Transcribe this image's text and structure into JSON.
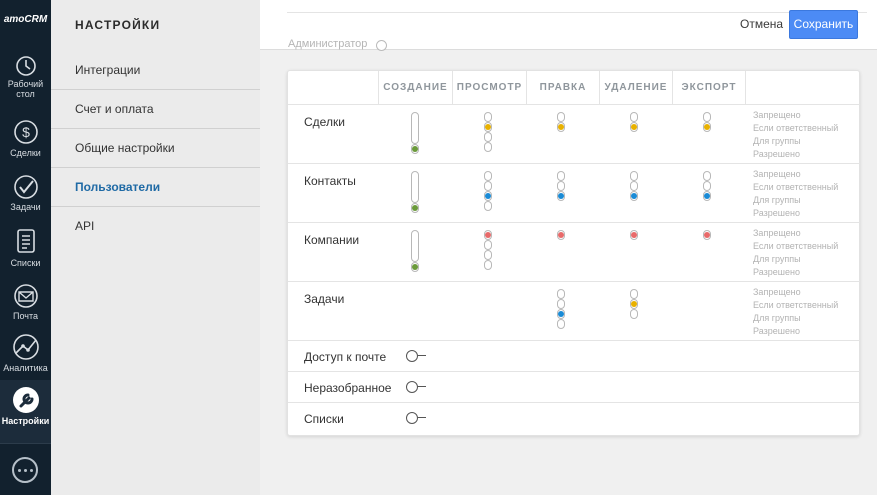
{
  "app": {
    "logo": "amoCRM"
  },
  "nav": [
    {
      "key": "dashboard",
      "label_line1": "Рабочий",
      "label_line2": "стол"
    },
    {
      "key": "deals",
      "label": "Сделки"
    },
    {
      "key": "tasks",
      "label": "Задачи"
    },
    {
      "key": "lists",
      "label": "Списки"
    },
    {
      "key": "mail",
      "label": "Почта"
    },
    {
      "key": "analytics",
      "label": "Аналитика"
    },
    {
      "key": "settings",
      "label": "Настройки",
      "active": true
    }
  ],
  "menu": {
    "title": "НАСТРОЙКИ",
    "items": [
      "Интеграции",
      "Счет и оплата",
      "Общие настройки",
      "Пользователи",
      "API"
    ],
    "active_index": 3
  },
  "topbar": {
    "cancel_label": "Отмена",
    "save_label": "Сохранить",
    "admin_label": "Администратор"
  },
  "colors": {
    "accent": "#4c8bf5",
    "green": "#6a9a3a",
    "yellow": "#e8b100",
    "blue": "#1a8bd6",
    "red": "#e86a6a"
  },
  "table": {
    "columns": [
      "СОЗДАНИЕ",
      "ПРОСМОТР",
      "ПРАВКА",
      "УДАЛЕНИЕ",
      "ЭКСПОРТ"
    ],
    "legend": [
      "Запрещено",
      "Если ответственный",
      "Для группы",
      "Разрешено"
    ],
    "rows": [
      {
        "label": "Сделки"
      },
      {
        "label": "Контакты"
      },
      {
        "label": "Компании"
      },
      {
        "label": "Задачи"
      },
      {
        "label": "Доступ к почте"
      },
      {
        "label": "Неразобранное"
      },
      {
        "label": "Списки"
      }
    ]
  }
}
